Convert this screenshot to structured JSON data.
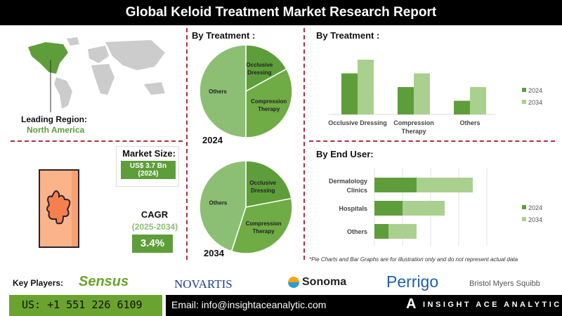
{
  "title": "Global Keloid Treatment Market Research Report",
  "region": {
    "label": "Leading Region:",
    "value": "North America"
  },
  "market_size": {
    "label": "Market Size:",
    "value": "US$ 3.7 Bn",
    "year": "(2024)"
  },
  "cagr": {
    "label": "CAGR",
    "period": "(2025-2034)",
    "value": "3.4%"
  },
  "colors": {
    "dark_green": "#5e9e3a",
    "mid_green": "#6fac45",
    "light_green": "#a9d08e",
    "accent_red": "#a83240"
  },
  "chart_data": [
    {
      "type": "pie",
      "title": "By Treatment :",
      "caption": "2024",
      "slices": [
        {
          "label": "Occlusive Dressing",
          "value": 17
        },
        {
          "label": "Compression Therapy",
          "value": 33
        },
        {
          "label": "Others",
          "value": 50
        }
      ]
    },
    {
      "type": "pie",
      "caption": "2034",
      "slices": [
        {
          "label": "Occlusive Dressing",
          "value": 22
        },
        {
          "label": "Compression Therapy",
          "value": 33
        },
        {
          "label": "Others",
          "value": 45
        }
      ]
    },
    {
      "type": "bar",
      "title": "By Treatment :",
      "categories": [
        "Occlusive Dressing",
        "Compression Therapy",
        "Others"
      ],
      "series": [
        {
          "name": "2024",
          "values": [
            3,
            2,
            1
          ]
        },
        {
          "name": "2034",
          "values": [
            4,
            3,
            2
          ]
        }
      ],
      "legend": "right"
    },
    {
      "type": "bar",
      "orientation": "horizontal",
      "stacked": true,
      "title": "By End User:",
      "categories": [
        "Dermatology Clinics",
        "Hospitals",
        "Others"
      ],
      "series": [
        {
          "name": "2024",
          "values": [
            1.5,
            1,
            0.5
          ]
        },
        {
          "name": "2034",
          "values": [
            2,
            1.5,
            1
          ]
        }
      ],
      "legend": "right",
      "grid": true
    }
  ],
  "disclaimer": "*Pie Charts and Bar Graphs are for illustration only and do not represent actual data",
  "key_players": {
    "label": "Key Players:",
    "logos": [
      "Sensus",
      "NOVARTIS",
      "Sonoma",
      "Perrigo",
      "Bristol Myers Squibb"
    ]
  },
  "footer": {
    "phone": "US: +1 551 226 6109",
    "email": "Email: info@insightaceanalytic.com",
    "brand": "INSIGHT ACE ANALYTIC"
  }
}
